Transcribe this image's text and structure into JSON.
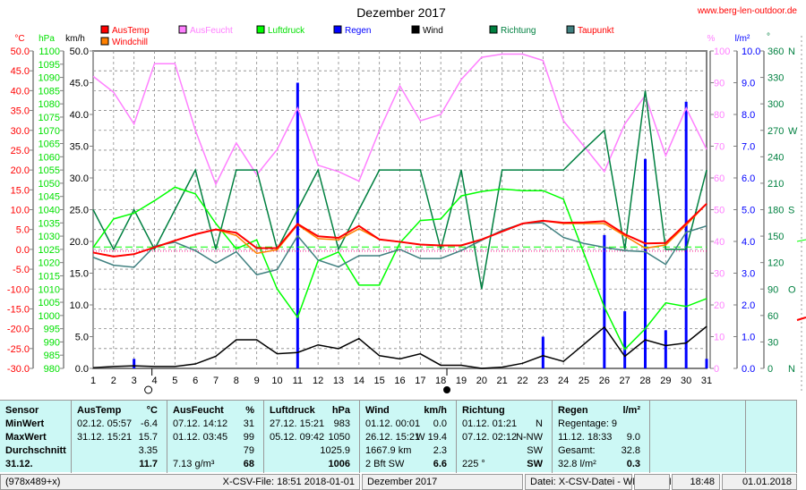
{
  "header": {
    "title": "Dezember 2017",
    "url": "www.berg-len-outdoor.de"
  },
  "units": {
    "temp": "°C",
    "pressure": "hPa",
    "wind": "km/h",
    "humidity": "%",
    "rain": "l/m²",
    "direction": "°"
  },
  "chart_data": {
    "type": "line",
    "title": "Dezember 2017",
    "x": [
      1,
      2,
      3,
      4,
      5,
      6,
      7,
      8,
      9,
      10,
      11,
      12,
      13,
      14,
      15,
      16,
      17,
      18,
      19,
      20,
      21,
      22,
      23,
      24,
      25,
      26,
      27,
      28,
      29,
      30,
      31
    ],
    "grid": true,
    "legend_placement": "top",
    "axes": {
      "temp": {
        "range": [
          -30,
          50
        ],
        "ticks": [
          "50.0",
          "45.0",
          "40.0",
          "35.0",
          "30.0",
          "25.0",
          "20.0",
          "15.0",
          "10.0",
          "5.0",
          "0.0",
          "-5.0",
          "-10.0",
          "-15.0",
          "-20.0",
          "-25.0",
          "-30.0"
        ]
      },
      "pressure": {
        "range": [
          980,
          1100
        ],
        "ticks": [
          "1100",
          "1095",
          "1090",
          "1085",
          "1080",
          "1075",
          "1070",
          "1065",
          "1060",
          "1055",
          "1050",
          "1045",
          "1040",
          "1035",
          "1030",
          "1025",
          "1020",
          "1015",
          "1010",
          "1005",
          "1000",
          "995",
          "990",
          "985",
          "980"
        ]
      },
      "wind": {
        "range": [
          0,
          50
        ],
        "ticks": [
          "50.0",
          "45.0",
          "40.0",
          "35.0",
          "30.0",
          "25.0",
          "20.0",
          "15.0",
          "10.0",
          "5.0",
          "0.0"
        ]
      },
      "humidity": {
        "range": [
          0,
          100
        ],
        "ticks": [
          "100",
          "90",
          "80",
          "70",
          "60",
          "50",
          "40",
          "30",
          "20",
          "10",
          "0"
        ]
      },
      "rain": {
        "range": [
          0,
          10
        ],
        "ticks": [
          "10.0",
          "9.0",
          "8.0",
          "7.0",
          "6.0",
          "5.0",
          "4.0",
          "3.0",
          "2.0",
          "1.0",
          "0.0"
        ]
      },
      "direction": {
        "range": [
          0,
          360
        ],
        "ticks": [
          "360",
          "330",
          "300",
          "270",
          "240",
          "210",
          "180",
          "150",
          "120",
          "90",
          "60",
          "30",
          "0"
        ],
        "compass": {
          "360": "N",
          "270": "W",
          "180": "S",
          "90": "O",
          "0": "N"
        }
      }
    },
    "series": [
      {
        "name": "AusFeucht",
        "axis": "humidity",
        "color": "#ff80ff",
        "values": [
          92,
          87,
          77,
          96,
          96,
          75,
          58,
          71,
          61,
          69,
          82,
          64,
          62,
          59,
          75,
          89,
          78,
          80,
          91,
          98,
          99,
          99,
          97,
          78,
          70,
          62,
          77,
          86,
          67,
          82,
          69
        ]
      },
      {
        "name": "Richtung",
        "axis": "direction",
        "color": "#008040",
        "values": [
          180,
          135,
          180,
          135,
          180,
          225,
          135,
          225,
          225,
          135,
          180,
          225,
          135,
          180,
          225,
          225,
          225,
          135,
          225,
          90,
          225,
          225,
          225,
          225,
          248,
          270,
          135,
          315,
          135,
          135,
          225
        ]
      },
      {
        "name": "Luftdruck",
        "axis": "pressure",
        "color": "#00ff00",
        "values": [
          1025.7,
          1036.5,
          1038.7,
          1043.4,
          1048.5,
          1046,
          1034.8,
          1025.2,
          1028.6,
          1010,
          999.3,
          1020.7,
          1024,
          1011.5,
          1011.5,
          1027.4,
          1035.9,
          1036.5,
          1045.2,
          1046.9,
          1047.8,
          1047.2,
          1047.2,
          1044,
          1023.5,
          1003.2,
          987.2,
          995,
          1004.8,
          1003.4,
          1006.4
        ]
      },
      {
        "name": "Taupunkt",
        "axis": "temp",
        "color": "#408080",
        "values": [
          -2,
          -4,
          -4.5,
          0.8,
          1.8,
          -0.3,
          -3.5,
          -0.6,
          -6.4,
          -5.1,
          3.4,
          -2.7,
          -4.4,
          -1.6,
          -1.6,
          0,
          -2.3,
          -2.3,
          -0.3,
          2.3,
          4.8,
          6.5,
          6.7,
          3,
          1.5,
          0.5,
          -0.3,
          -0.6,
          -3.8,
          4.3,
          5.9
        ]
      },
      {
        "name": "Windchill",
        "axis": "temp",
        "color": "#ff8000",
        "values": [
          -0.8,
          -1.8,
          -1.2,
          0.5,
          2.2,
          3.8,
          5,
          3.5,
          -1,
          -0.1,
          6.2,
          2.7,
          2.4,
          5.2,
          2.5,
          1.9,
          1.2,
          1,
          1,
          2.5,
          4.5,
          6.5,
          7.2,
          6.5,
          6.5,
          6.5,
          3.4,
          0.3,
          1.1,
          6.1,
          11.5
        ]
      },
      {
        "name": "AusTemp",
        "axis": "temp",
        "color": "#ff0000",
        "values": [
          -0.8,
          -1.8,
          -1.2,
          0.5,
          2.2,
          3.8,
          5,
          4.2,
          0.3,
          0.3,
          6.4,
          3.3,
          2.9,
          5.9,
          2.5,
          1.9,
          1.2,
          1,
          1,
          2.5,
          4.5,
          6.5,
          7.2,
          6.7,
          6.8,
          7.1,
          3.8,
          1.5,
          1.6,
          6.5,
          11.5
        ]
      },
      {
        "name": "Wind",
        "axis": "wind",
        "color": "#000000",
        "values": [
          0.1,
          0.3,
          0.4,
          0.3,
          0.3,
          0.7,
          1.9,
          4.5,
          4.5,
          2.3,
          2.5,
          3.7,
          3.1,
          4.7,
          2,
          1.5,
          2.3,
          0.5,
          0.5,
          0,
          0.2,
          0.8,
          2,
          1.1,
          3.8,
          6.5,
          1.9,
          4.5,
          3.6,
          4,
          6.6
        ]
      },
      {
        "name": "Regen",
        "axis": "rain",
        "color": "#0000ff",
        "type": "bar",
        "values": [
          0,
          0,
          0.3,
          0,
          0,
          0,
          0,
          0,
          0,
          0,
          9,
          0,
          0,
          0,
          0,
          0,
          0,
          0,
          0,
          0,
          0,
          0,
          1,
          0,
          0,
          4.2,
          1.8,
          6.6,
          1.2,
          8.4,
          0.3
        ]
      }
    ],
    "reference_lines": {
      "pressure_average": 1025.9,
      "temp_zero": 0
    },
    "moon_phases": {
      "full_moon_day": 3.7,
      "new_moon_day": 18.3
    }
  },
  "legend": [
    {
      "name": "AusTemp",
      "color": "#ff0000",
      "text_color": "#ff0000"
    },
    {
      "name": "AusFeucht",
      "color": "#ff80ff",
      "text_color": "#ff80ff"
    },
    {
      "name": "Luftdruck",
      "color": "#00ff00",
      "text_color": "#00e000"
    },
    {
      "name": "Regen",
      "color": "#0000ff",
      "text_color": "#0000ff"
    },
    {
      "name": "Wind",
      "color": "#000000",
      "text_color": "#000000"
    },
    {
      "name": "Richtung",
      "color": "#008040",
      "text_color": "#008040"
    },
    {
      "name": "Taupunkt",
      "color": "#408080",
      "text_color": "#ff0000"
    },
    {
      "name": "Windchill",
      "color": "#ff8000",
      "text_color": "#ff0000"
    }
  ],
  "table": {
    "sensor": [
      "Sensor",
      "MinWert",
      "MaxWert",
      "Durchschnitt",
      "31.12."
    ],
    "columns": [
      {
        "title": "AusTemp",
        "unit": "°C",
        "rows": [
          [
            "02.12.  05:57",
            "-6.4"
          ],
          [
            "31.12.  15:21",
            "15.7"
          ],
          [
            "",
            "3.35"
          ],
          [
            "",
            "11.7"
          ]
        ]
      },
      {
        "title": "AusFeucht",
        "unit": "%",
        "rows": [
          [
            "07.12.  14:12",
            "31"
          ],
          [
            "01.12.  03:45",
            "99"
          ],
          [
            "",
            "79"
          ],
          [
            "7.13 g/m³",
            "68"
          ]
        ]
      },
      {
        "title": "Luftdruck",
        "unit": "hPa",
        "rows": [
          [
            "27.12.  15:21",
            "983"
          ],
          [
            "05.12.  09:42",
            "1050"
          ],
          [
            "",
            "1025.9"
          ],
          [
            "",
            "1006"
          ]
        ]
      },
      {
        "title": "Wind",
        "unit": "km/h",
        "rows": [
          [
            "01.12.  00:01",
            "0.0"
          ],
          [
            "26.12.  15:21",
            "W 19.4"
          ],
          [
            "1667.9 km",
            "2.3"
          ],
          [
            "2 Bft SW",
            "6.6"
          ]
        ]
      },
      {
        "title": "Richtung",
        "unit": "",
        "rows": [
          [
            "01.12.  01:21",
            "N"
          ],
          [
            "07.12.  02:12",
            "N-NW"
          ],
          [
            "",
            "SW"
          ],
          [
            "225 °",
            "SW"
          ]
        ]
      },
      {
        "title": "Regen",
        "unit": "l/m²",
        "rows": [
          [
            "Regentage: 9",
            ""
          ],
          [
            "11.12.  18:33",
            "9.0"
          ],
          [
            "Gesamt:",
            "32.8"
          ],
          [
            "32.8 l/m²",
            "0.3"
          ]
        ]
      }
    ]
  },
  "statusbar": {
    "size": "(978x489+x)",
    "file": "X-CSV-File:  18:51  2018-01-01",
    "month": "Dezember 2017",
    "source": "Datei: X-CSV-Datei - WMR918N",
    "blank": "",
    "time": "18:48",
    "date": "01.01.2018"
  }
}
